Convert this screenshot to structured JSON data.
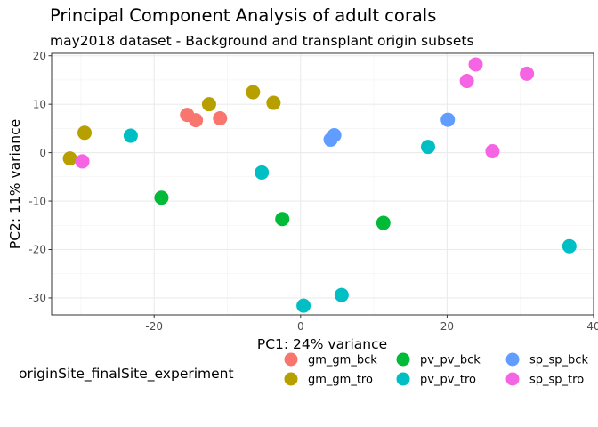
{
  "chart_data": {
    "type": "scatter",
    "title": "Principal Component Analysis of adult corals",
    "subtitle": "may2018 dataset - Background and transplant origin subsets",
    "xlabel": "PC1: 24% variance",
    "ylabel": "PC2: 11% variance",
    "xlim": [
      -34,
      40
    ],
    "ylim": [
      -33.5,
      20.5
    ],
    "x_ticks": [
      -20,
      0,
      20,
      40
    ],
    "x_tick_labels": [
      "-20",
      "0",
      "20",
      "40"
    ],
    "y_ticks": [
      -30,
      -20,
      -10,
      0,
      10,
      20
    ],
    "y_tick_labels": [
      "-30",
      "-20",
      "-10",
      "0",
      "10",
      "20"
    ],
    "grid": true,
    "legend_title": "originSite_finalSite_experiment",
    "legend_position": "bottom",
    "series": [
      {
        "name": "gm_gm_bck",
        "color": "#F8766D",
        "points": [
          [
            -15.5,
            7.8
          ],
          [
            -14.3,
            6.7
          ],
          [
            -11,
            7.1
          ]
        ]
      },
      {
        "name": "gm_gm_tro",
        "color": "#B79F00",
        "points": [
          [
            -31.5,
            -1.2
          ],
          [
            -29.5,
            4.1
          ],
          [
            -12.5,
            10
          ],
          [
            -6.5,
            12.5
          ],
          [
            -3.7,
            10.3
          ]
        ]
      },
      {
        "name": "pv_pv_bck",
        "color": "#00BA38",
        "points": [
          [
            -19,
            -9.3
          ],
          [
            -2.5,
            -13.7
          ],
          [
            11.3,
            -14.5
          ]
        ]
      },
      {
        "name": "pv_pv_tro",
        "color": "#00BFC4",
        "points": [
          [
            -23.2,
            3.5
          ],
          [
            -5.3,
            -4.1
          ],
          [
            0.4,
            -31.6
          ],
          [
            5.6,
            -29.4
          ],
          [
            17.4,
            1.2
          ],
          [
            36.7,
            -19.3
          ]
        ]
      },
      {
        "name": "sp_sp_bck",
        "color": "#619CFF",
        "points": [
          [
            4.1,
            2.7
          ],
          [
            4.6,
            3.6
          ],
          [
            20.1,
            6.8
          ]
        ]
      },
      {
        "name": "sp_sp_tro",
        "color": "#F564E3",
        "points": [
          [
            -29.8,
            -1.8
          ],
          [
            22.7,
            14.8
          ],
          [
            23.9,
            18.2
          ],
          [
            26.2,
            0.3
          ],
          [
            30.9,
            16.3
          ]
        ]
      }
    ]
  }
}
